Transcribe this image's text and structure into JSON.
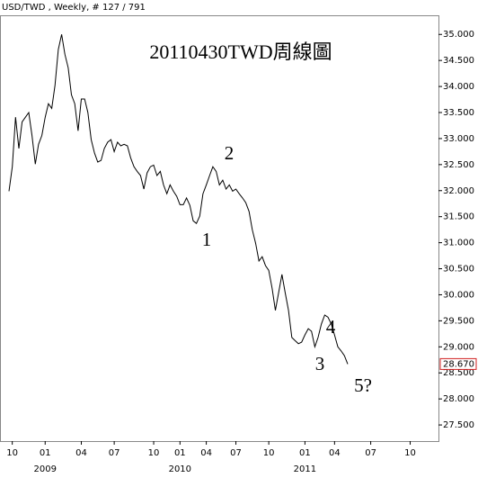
{
  "chart_data": {
    "type": "line",
    "header": "USD/TWD , Weekly, # 127 / 791",
    "title": "20110430TWD周線圖",
    "annotations": [
      "1",
      "2",
      "3",
      "4",
      "5?"
    ],
    "color": "#000000",
    "annotation_color": "#5b6ab0",
    "categories": [
      null,
      "10",
      null,
      null,
      null,
      null,
      null,
      null,
      null,
      null,
      null,
      "01",
      null,
      null,
      null,
      null,
      null,
      null,
      null,
      null,
      null,
      null,
      "04",
      null,
      null,
      null,
      null,
      null,
      null,
      null,
      null,
      null,
      "07",
      null,
      null,
      null,
      null,
      null,
      null,
      null,
      null,
      null,
      null,
      null,
      "10",
      null,
      null,
      null,
      null,
      null,
      null,
      null,
      "01",
      null,
      null,
      null,
      null,
      null,
      null,
      null,
      "04",
      null,
      null,
      null,
      null,
      null,
      null,
      null,
      null,
      "07",
      null,
      null,
      null,
      null,
      null,
      null,
      null,
      null,
      null,
      "10",
      null,
      null,
      null,
      null,
      null,
      null,
      null,
      null,
      null,
      null,
      "01",
      null,
      null,
      null,
      null,
      null,
      null,
      null,
      null,
      "04",
      null,
      null,
      null,
      null,
      null,
      null,
      null,
      null,
      null,
      null,
      "07",
      null,
      null,
      null,
      null,
      null,
      null,
      null,
      null,
      null,
      null,
      null,
      "10",
      null,
      null,
      null,
      null,
      null,
      null,
      null,
      null
    ],
    "category_years": [
      null,
      null,
      null,
      null,
      null,
      null,
      null,
      null,
      null,
      null,
      null,
      "2009",
      null,
      null,
      null,
      null,
      null,
      null,
      null,
      null,
      null,
      null,
      null,
      null,
      null,
      null,
      null,
      null,
      null,
      null,
      null,
      null,
      null,
      null,
      null,
      null,
      null,
      null,
      null,
      null,
      null,
      null,
      null,
      null,
      null,
      null,
      null,
      null,
      null,
      null,
      null,
      null,
      "2010",
      null,
      null,
      null,
      null,
      null,
      null,
      null,
      null,
      null,
      null,
      null,
      null,
      null,
      null,
      null,
      null,
      null,
      null,
      null,
      null,
      null,
      null,
      null,
      null,
      null,
      null,
      null,
      null,
      null,
      null,
      null,
      null,
      null,
      null,
      null,
      null,
      null,
      "2011",
      null,
      null,
      null,
      null,
      null,
      null,
      null,
      null,
      null,
      null,
      null,
      null,
      null,
      null,
      null,
      null,
      null,
      null,
      null,
      null,
      null,
      null,
      null,
      null,
      null,
      null,
      null,
      null,
      null,
      null,
      null,
      null,
      null,
      null,
      null,
      null,
      null,
      null,
      null,
      null,
      null,
      null,
      null,
      null,
      null
    ],
    "values": [
      31.99,
      32.46,
      33.41,
      32.81,
      33.32,
      33.41,
      33.5,
      33.06,
      32.51,
      32.89,
      33.06,
      33.41,
      33.67,
      33.58,
      34.02,
      34.71,
      35.0,
      34.62,
      34.36,
      33.84,
      33.67,
      33.15,
      33.76,
      33.76,
      33.5,
      32.98,
      32.72,
      32.55,
      32.58,
      32.81,
      32.93,
      32.98,
      32.75,
      32.93,
      32.86,
      32.89,
      32.86,
      32.63,
      32.46,
      32.37,
      32.29,
      32.03,
      32.34,
      32.46,
      32.49,
      32.29,
      32.37,
      32.11,
      31.94,
      32.11,
      31.99,
      31.89,
      31.73,
      31.73,
      31.86,
      31.72,
      31.42,
      31.37,
      31.51,
      31.94,
      32.11,
      32.29,
      32.46,
      32.37,
      32.11,
      32.2,
      32.03,
      32.11,
      31.99,
      32.03,
      31.94,
      31.86,
      31.77,
      31.6,
      31.25,
      30.99,
      30.65,
      30.73,
      30.56,
      30.47,
      30.13,
      29.7,
      30.04,
      30.39,
      30.04,
      29.7,
      29.18,
      29.12,
      29.06,
      29.09,
      29.23,
      29.35,
      29.3,
      29.0,
      29.18,
      29.44,
      29.61,
      29.57,
      29.44,
      29.23,
      29.0,
      28.92,
      28.83,
      28.67,
      null,
      null,
      null,
      null,
      null,
      null,
      null,
      null,
      null,
      null,
      null,
      null,
      null,
      null,
      null,
      null,
      null,
      null,
      null,
      null,
      null,
      null,
      null,
      null,
      null,
      null,
      null
    ],
    "value_labels": [
      null,
      null,
      null,
      null,
      null,
      null,
      null,
      null,
      null,
      null,
      null,
      null,
      null,
      null,
      null,
      null,
      null,
      null,
      null,
      null,
      null,
      null,
      null,
      null,
      null,
      null,
      null,
      null,
      null,
      null,
      null,
      null,
      null,
      null,
      null,
      null,
      null,
      null,
      null,
      null,
      null,
      null,
      null,
      null,
      null,
      null,
      null,
      null,
      null,
      null,
      null,
      null,
      null,
      null,
      null,
      null,
      null,
      null,
      null,
      null,
      null,
      null,
      null,
      null,
      null,
      null,
      null,
      null,
      null,
      null,
      null,
      null,
      null,
      null,
      null,
      null,
      null,
      null,
      null,
      null,
      null,
      null,
      null,
      null,
      null,
      null,
      null,
      null,
      null,
      null,
      null,
      null,
      null,
      null,
      null,
      null,
      null,
      null,
      null,
      null,
      null,
      null,
      null,
      "28.670",
      null,
      null,
      null,
      null,
      null,
      null,
      null,
      null,
      null,
      null,
      null,
      null,
      null,
      null,
      null,
      null,
      null,
      null,
      null,
      null,
      null,
      null,
      null,
      null,
      null,
      null,
      null
    ],
    "ylim": [
      27.19,
      35.35
    ],
    "yticks": [
      {
        "value": 27.5,
        "label": "27.500"
      },
      {
        "value": 28,
        "label": "28.000"
      },
      {
        "value": 28.5,
        "label": "28.500"
      },
      {
        "value": 29,
        "label": "29.000"
      },
      {
        "value": 29.5,
        "label": "29.500"
      },
      {
        "value": 30,
        "label": "30.000"
      },
      {
        "value": 30.5,
        "label": "30.500"
      },
      {
        "value": 31,
        "label": "31.000"
      },
      {
        "value": 31.5,
        "label": "31.500"
      },
      {
        "value": 32,
        "label": "32.000"
      },
      {
        "value": 32.5,
        "label": "32.500"
      },
      {
        "value": 33,
        "label": "33.000"
      },
      {
        "value": 33.5,
        "label": "33.500"
      },
      {
        "value": 34,
        "label": "34.000"
      },
      {
        "value": 34.5,
        "label": "34.500"
      },
      {
        "value": 35,
        "label": "35.000"
      }
    ],
    "grid": false
  }
}
